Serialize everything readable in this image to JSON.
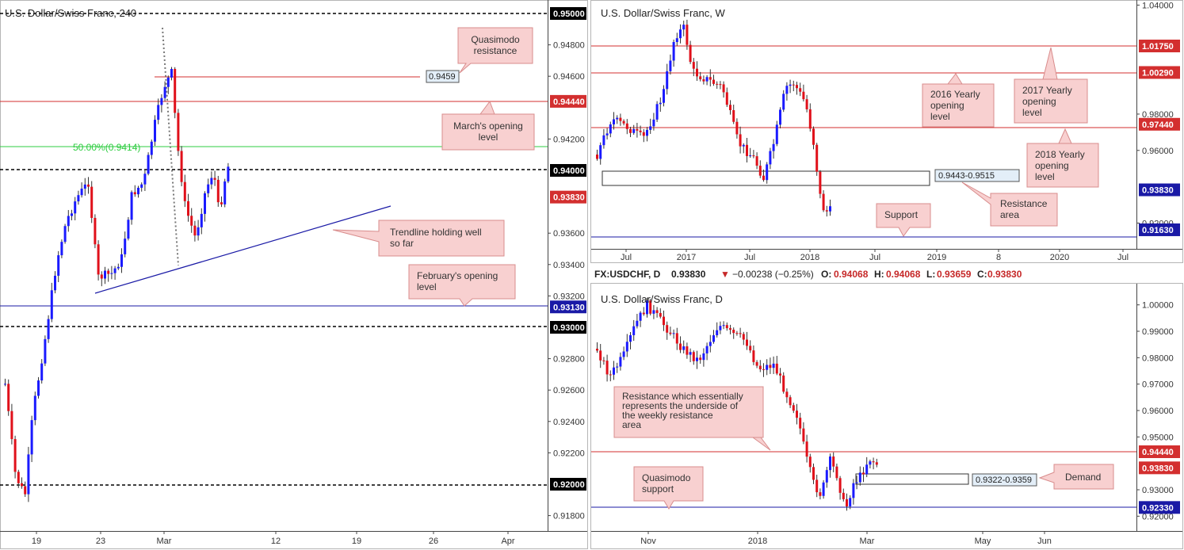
{
  "chart_data": [
    {
      "type": "candlestick",
      "title": "U.S. Dollar/Swiss Franc, 240",
      "ylim": [
        0.9165,
        0.951
      ],
      "x_ticks": [
        "19",
        "23",
        "Mar",
        "12",
        "19",
        "26",
        "Apr"
      ],
      "y_ticks": [
        "0.94800",
        "0.94600",
        "0.94200",
        "0.93600",
        "0.93400",
        "0.93200",
        "0.92800",
        "0.92600",
        "0.92400",
        "0.92200",
        "0.91800"
      ],
      "level_tags": [
        {
          "label": "0.95000",
          "value": 0.95,
          "color": "#000000"
        },
        {
          "label": "0.94440",
          "value": 0.9444,
          "color": "#d32f2f"
        },
        {
          "label": "0.94000",
          "value": 0.94,
          "color": "#000000"
        },
        {
          "label": "0.93830",
          "value": 0.9383,
          "color": "#d32f2f"
        },
        {
          "label": "0.93130",
          "value": 0.9313,
          "color": "#1a1aa6"
        },
        {
          "label": "0.93000",
          "value": 0.93,
          "color": "#000000"
        },
        {
          "label": "0.92000",
          "value": 0.92,
          "color": "#000000"
        }
      ],
      "fib_label": "50.00%(0.9414)",
      "price_box": "0.9459",
      "annotations": [
        "Quasimodo resistance",
        "March's opening level",
        "Trendline holding well so far",
        "February's opening level"
      ]
    },
    {
      "type": "candlestick",
      "title": "U.S. Dollar/Swiss Franc, W",
      "ylim": [
        0.91,
        1.04
      ],
      "x_ticks": [
        "Jul",
        "2017",
        "Jul",
        "2018",
        "Jul",
        "2019",
        "8",
        "2020",
        "Jul"
      ],
      "y_ticks": [
        "1.04000",
        "0.98000",
        "0.96000",
        "0.92000"
      ],
      "level_tags": [
        {
          "label": "1.01750",
          "value": 1.0175,
          "color": "#d32f2f"
        },
        {
          "label": "1.00290",
          "value": 1.0029,
          "color": "#d32f2f"
        },
        {
          "label": "0.97440",
          "value": 0.9744,
          "color": "#d32f2f"
        },
        {
          "label": "0.93830",
          "value": 0.9383,
          "color": "#1a1aa6"
        },
        {
          "label": "0.91630",
          "value": 0.9163,
          "color": "#1a1aa6"
        }
      ],
      "zone_label": "0.9443-0.9515",
      "annotations": [
        "2016 Yearly opening level",
        "2017 Yearly opening level",
        "2018 Yearly opening level",
        "Resistance area",
        "Support"
      ]
    },
    {
      "type": "candlestick",
      "title": "U.S. Dollar/Swiss Franc, D",
      "ylim": [
        0.916,
        1.006
      ],
      "x_ticks": [
        "Nov",
        "2018",
        "Mar",
        "May",
        "Jun"
      ],
      "y_ticks": [
        "1.00000",
        "0.99000",
        "0.98000",
        "0.97000",
        "0.96000",
        "0.95000",
        "0.93000",
        "0.92000"
      ],
      "level_tags": [
        {
          "label": "0.94440",
          "value": 0.9444,
          "color": "#d32f2f"
        },
        {
          "label": "0.93830",
          "value": 0.9383,
          "color": "#d32f2f"
        },
        {
          "label": "0.92330",
          "value": 0.9233,
          "color": "#1a1aa6"
        }
      ],
      "zone_label": "0.9322-0.9359",
      "annotations": [
        "Resistance which essentially represents the underside of the weekly resistance area",
        "Demand",
        "Quasimodo support"
      ]
    }
  ],
  "ohlc_bar": {
    "symbol": "FX:USDCHF, D",
    "last": "0.93830",
    "change": "−0.00238 (−0.25%)",
    "o_label": "O:",
    "o": "0.94068",
    "h_label": "H:",
    "h": "0.94068",
    "l_label": "L:",
    "l": "0.93659",
    "c_label": "C:",
    "c": "0.93830"
  },
  "colors": {
    "up": "#1a1aff",
    "down": "#e0101a",
    "note_bg": "#f8d0d0",
    "note_border": "#d88c8c"
  }
}
